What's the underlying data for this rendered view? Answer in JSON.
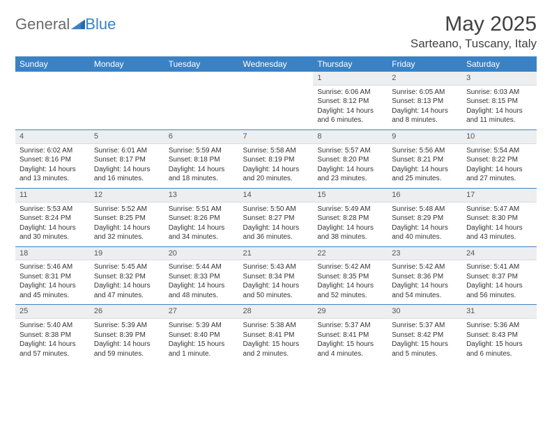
{
  "brand": {
    "part1": "General",
    "part2": "Blue"
  },
  "title": "May 2025",
  "location": "Sarteano, Tuscany, Italy",
  "colors": {
    "header_bg": "#3b82c4",
    "header_text": "#ffffff",
    "daynum_bg": "#eceef0",
    "row_border": "#3b82c4",
    "body_text": "#333333",
    "logo_gray": "#6a6a6a",
    "logo_blue": "#3b82c4"
  },
  "weekdays": [
    "Sunday",
    "Monday",
    "Tuesday",
    "Wednesday",
    "Thursday",
    "Friday",
    "Saturday"
  ],
  "weeks": [
    [
      {
        "n": "",
        "sr": "",
        "ss": "",
        "dl": ""
      },
      {
        "n": "",
        "sr": "",
        "ss": "",
        "dl": ""
      },
      {
        "n": "",
        "sr": "",
        "ss": "",
        "dl": ""
      },
      {
        "n": "",
        "sr": "",
        "ss": "",
        "dl": ""
      },
      {
        "n": "1",
        "sr": "Sunrise: 6:06 AM",
        "ss": "Sunset: 8:12 PM",
        "dl": "Daylight: 14 hours and 6 minutes."
      },
      {
        "n": "2",
        "sr": "Sunrise: 6:05 AM",
        "ss": "Sunset: 8:13 PM",
        "dl": "Daylight: 14 hours and 8 minutes."
      },
      {
        "n": "3",
        "sr": "Sunrise: 6:03 AM",
        "ss": "Sunset: 8:15 PM",
        "dl": "Daylight: 14 hours and 11 minutes."
      }
    ],
    [
      {
        "n": "4",
        "sr": "Sunrise: 6:02 AM",
        "ss": "Sunset: 8:16 PM",
        "dl": "Daylight: 14 hours and 13 minutes."
      },
      {
        "n": "5",
        "sr": "Sunrise: 6:01 AM",
        "ss": "Sunset: 8:17 PM",
        "dl": "Daylight: 14 hours and 16 minutes."
      },
      {
        "n": "6",
        "sr": "Sunrise: 5:59 AM",
        "ss": "Sunset: 8:18 PM",
        "dl": "Daylight: 14 hours and 18 minutes."
      },
      {
        "n": "7",
        "sr": "Sunrise: 5:58 AM",
        "ss": "Sunset: 8:19 PM",
        "dl": "Daylight: 14 hours and 20 minutes."
      },
      {
        "n": "8",
        "sr": "Sunrise: 5:57 AM",
        "ss": "Sunset: 8:20 PM",
        "dl": "Daylight: 14 hours and 23 minutes."
      },
      {
        "n": "9",
        "sr": "Sunrise: 5:56 AM",
        "ss": "Sunset: 8:21 PM",
        "dl": "Daylight: 14 hours and 25 minutes."
      },
      {
        "n": "10",
        "sr": "Sunrise: 5:54 AM",
        "ss": "Sunset: 8:22 PM",
        "dl": "Daylight: 14 hours and 27 minutes."
      }
    ],
    [
      {
        "n": "11",
        "sr": "Sunrise: 5:53 AM",
        "ss": "Sunset: 8:24 PM",
        "dl": "Daylight: 14 hours and 30 minutes."
      },
      {
        "n": "12",
        "sr": "Sunrise: 5:52 AM",
        "ss": "Sunset: 8:25 PM",
        "dl": "Daylight: 14 hours and 32 minutes."
      },
      {
        "n": "13",
        "sr": "Sunrise: 5:51 AM",
        "ss": "Sunset: 8:26 PM",
        "dl": "Daylight: 14 hours and 34 minutes."
      },
      {
        "n": "14",
        "sr": "Sunrise: 5:50 AM",
        "ss": "Sunset: 8:27 PM",
        "dl": "Daylight: 14 hours and 36 minutes."
      },
      {
        "n": "15",
        "sr": "Sunrise: 5:49 AM",
        "ss": "Sunset: 8:28 PM",
        "dl": "Daylight: 14 hours and 38 minutes."
      },
      {
        "n": "16",
        "sr": "Sunrise: 5:48 AM",
        "ss": "Sunset: 8:29 PM",
        "dl": "Daylight: 14 hours and 40 minutes."
      },
      {
        "n": "17",
        "sr": "Sunrise: 5:47 AM",
        "ss": "Sunset: 8:30 PM",
        "dl": "Daylight: 14 hours and 43 minutes."
      }
    ],
    [
      {
        "n": "18",
        "sr": "Sunrise: 5:46 AM",
        "ss": "Sunset: 8:31 PM",
        "dl": "Daylight: 14 hours and 45 minutes."
      },
      {
        "n": "19",
        "sr": "Sunrise: 5:45 AM",
        "ss": "Sunset: 8:32 PM",
        "dl": "Daylight: 14 hours and 47 minutes."
      },
      {
        "n": "20",
        "sr": "Sunrise: 5:44 AM",
        "ss": "Sunset: 8:33 PM",
        "dl": "Daylight: 14 hours and 48 minutes."
      },
      {
        "n": "21",
        "sr": "Sunrise: 5:43 AM",
        "ss": "Sunset: 8:34 PM",
        "dl": "Daylight: 14 hours and 50 minutes."
      },
      {
        "n": "22",
        "sr": "Sunrise: 5:42 AM",
        "ss": "Sunset: 8:35 PM",
        "dl": "Daylight: 14 hours and 52 minutes."
      },
      {
        "n": "23",
        "sr": "Sunrise: 5:42 AM",
        "ss": "Sunset: 8:36 PM",
        "dl": "Daylight: 14 hours and 54 minutes."
      },
      {
        "n": "24",
        "sr": "Sunrise: 5:41 AM",
        "ss": "Sunset: 8:37 PM",
        "dl": "Daylight: 14 hours and 56 minutes."
      }
    ],
    [
      {
        "n": "25",
        "sr": "Sunrise: 5:40 AM",
        "ss": "Sunset: 8:38 PM",
        "dl": "Daylight: 14 hours and 57 minutes."
      },
      {
        "n": "26",
        "sr": "Sunrise: 5:39 AM",
        "ss": "Sunset: 8:39 PM",
        "dl": "Daylight: 14 hours and 59 minutes."
      },
      {
        "n": "27",
        "sr": "Sunrise: 5:39 AM",
        "ss": "Sunset: 8:40 PM",
        "dl": "Daylight: 15 hours and 1 minute."
      },
      {
        "n": "28",
        "sr": "Sunrise: 5:38 AM",
        "ss": "Sunset: 8:41 PM",
        "dl": "Daylight: 15 hours and 2 minutes."
      },
      {
        "n": "29",
        "sr": "Sunrise: 5:37 AM",
        "ss": "Sunset: 8:41 PM",
        "dl": "Daylight: 15 hours and 4 minutes."
      },
      {
        "n": "30",
        "sr": "Sunrise: 5:37 AM",
        "ss": "Sunset: 8:42 PM",
        "dl": "Daylight: 15 hours and 5 minutes."
      },
      {
        "n": "31",
        "sr": "Sunrise: 5:36 AM",
        "ss": "Sunset: 8:43 PM",
        "dl": "Daylight: 15 hours and 6 minutes."
      }
    ]
  ]
}
